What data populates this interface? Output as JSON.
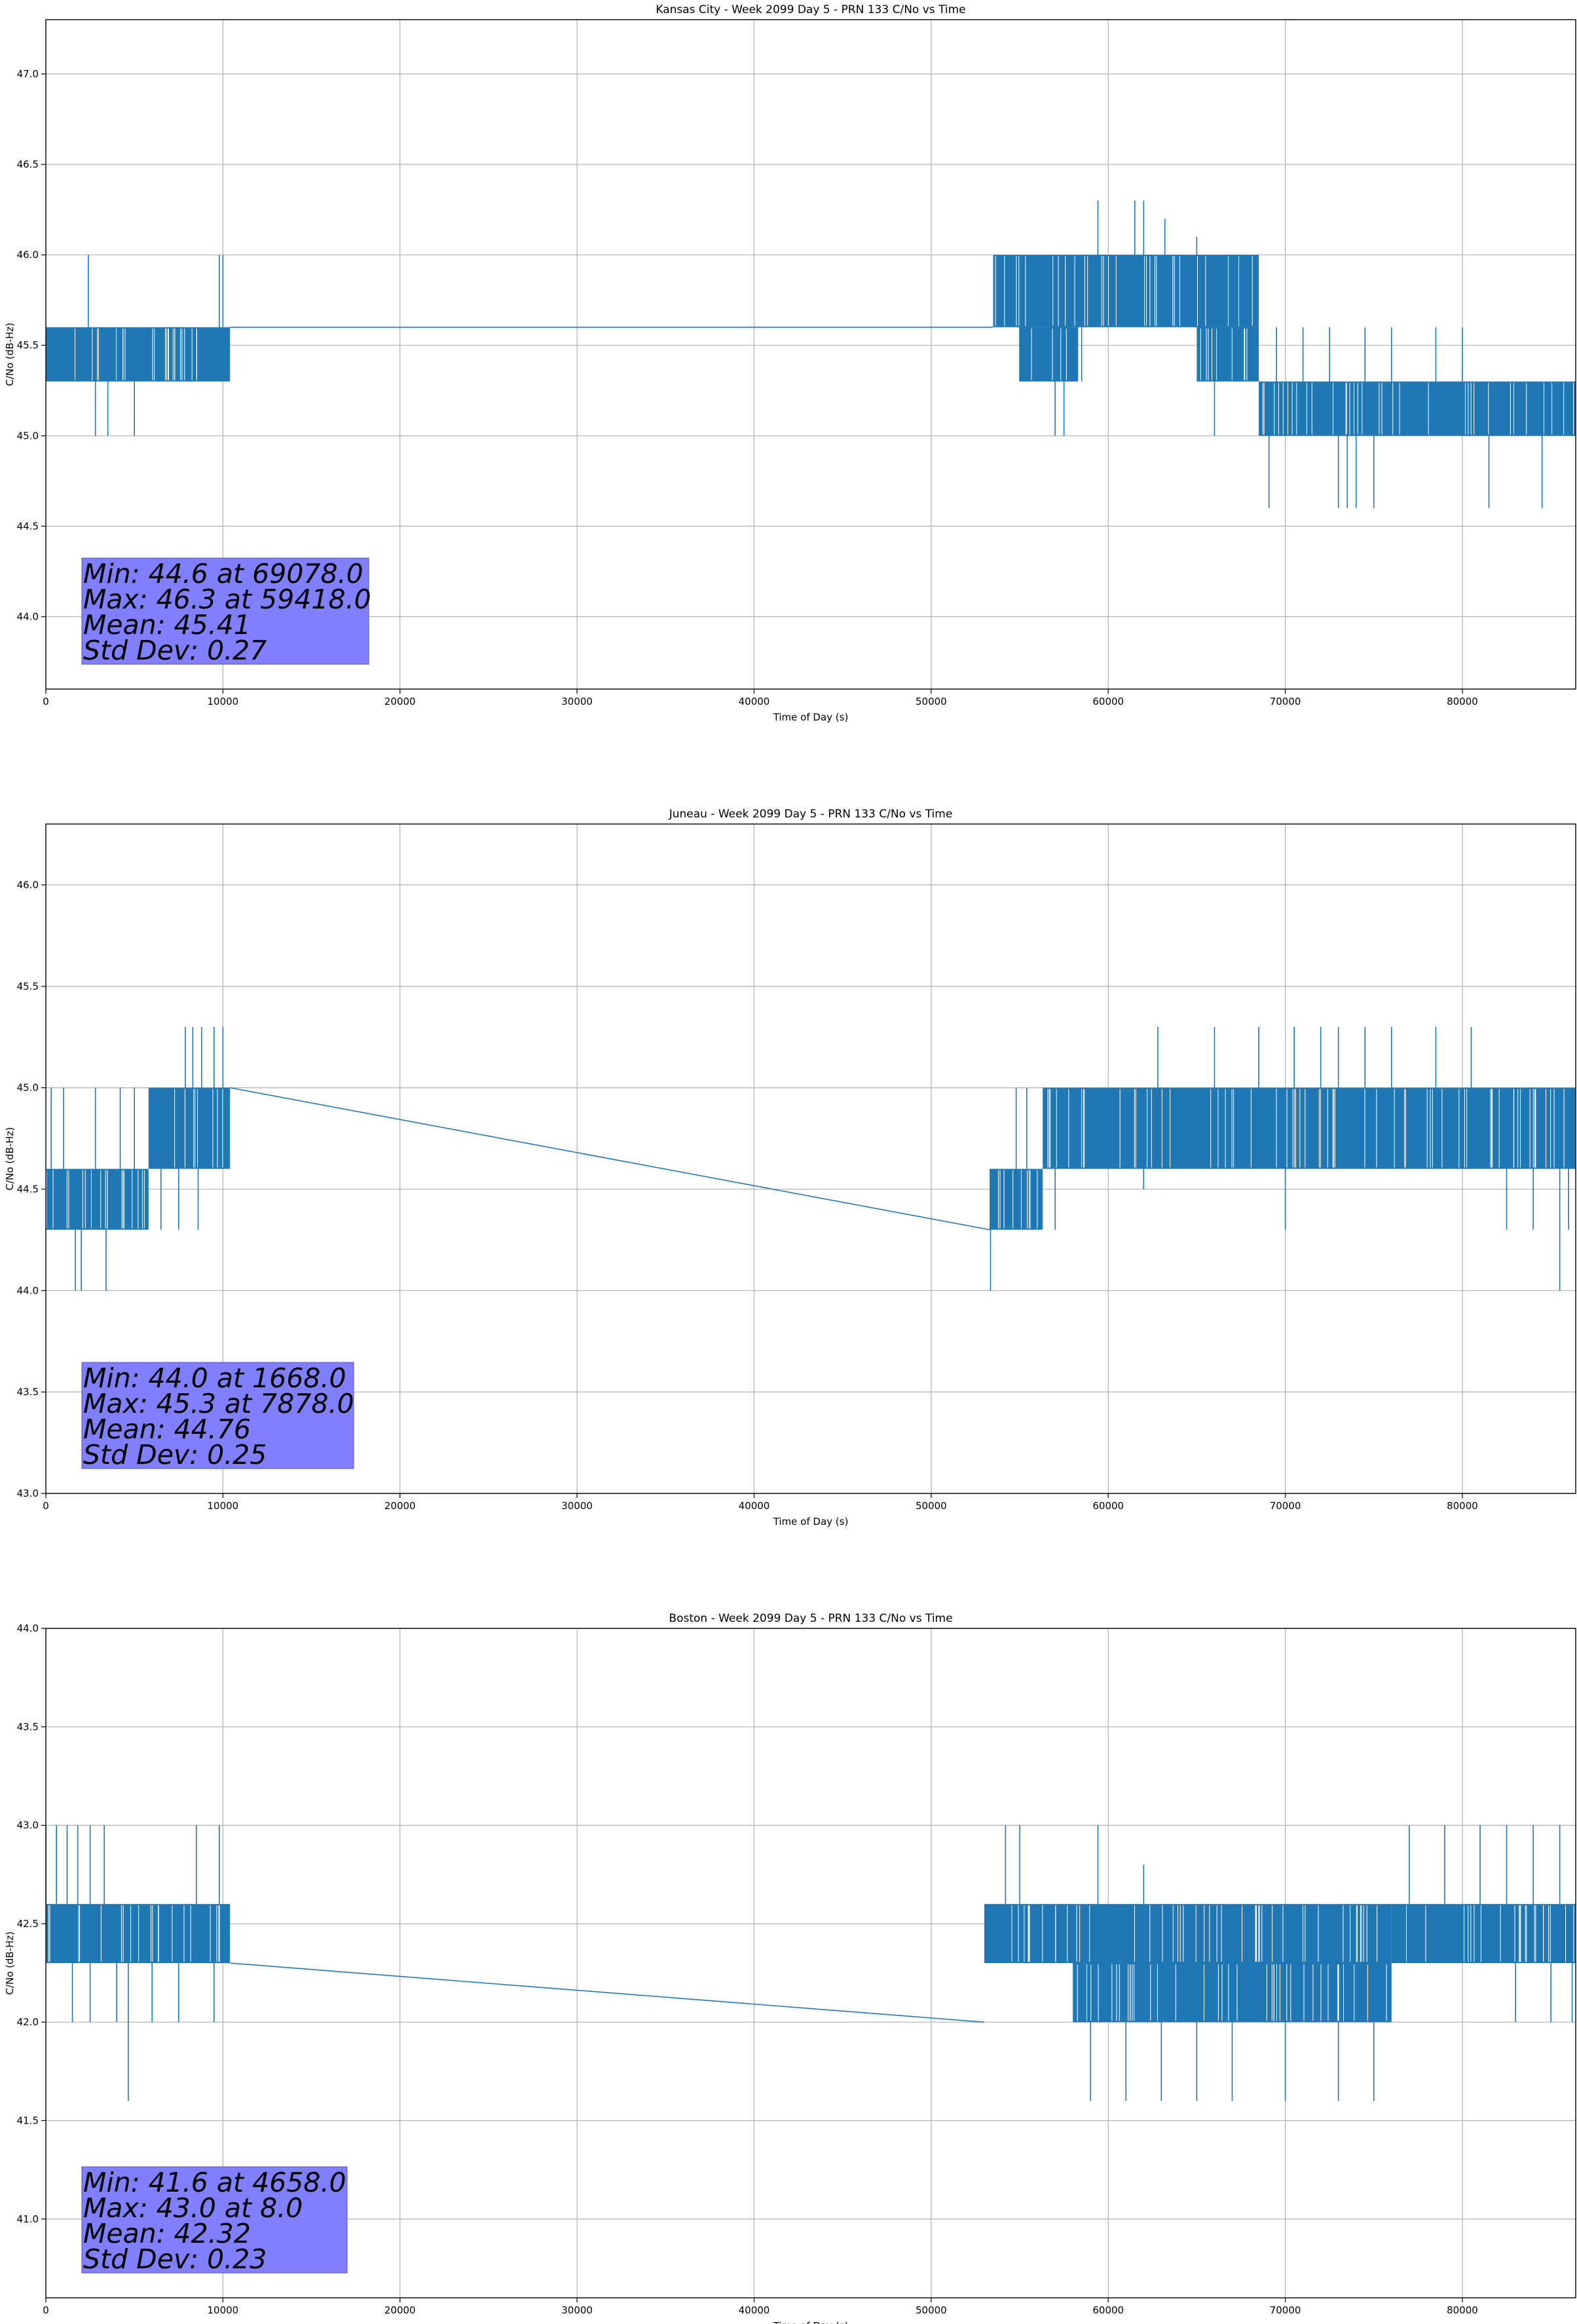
{
  "colors": {
    "series": "#1f77b4",
    "grid": "#b0b0b0",
    "statbox": "#8080ff"
  },
  "chart_data": [
    {
      "type": "line",
      "title": "Kansas City - Week 2099 Day 5 - PRN 133 C/No vs Time",
      "xlabel": "Time of Day (s)",
      "ylabel": "C/No (dB-Hz)",
      "xlim": [
        0,
        86400
      ],
      "ylim": [
        43.6,
        47.3
      ],
      "xticks": [
        0,
        10000,
        20000,
        30000,
        40000,
        50000,
        60000,
        70000,
        80000
      ],
      "yticks": [
        44.0,
        44.5,
        45.0,
        45.5,
        46.0,
        46.5,
        47.0
      ],
      "grid": true,
      "stats": [
        "Min: 44.6 at 69078.0",
        "Max: 46.3 at 59418.0",
        "Mean: 45.41",
        "Std Dev: 0.27"
      ],
      "series": [
        {
          "color": "#1f77b4",
          "levels": [
            45.3,
            45.6
          ],
          "outliers_low": [
            45.0
          ],
          "outliers_high": [
            46.0
          ],
          "segments": [
            {
              "x": [
                0,
                10400
              ],
              "levels": [
                45.3,
                45.6
              ],
              "high": [
                [
                  2400,
                  46.0
                ],
                [
                  9800,
                  46.0
                ],
                [
                  10000,
                  46.0
                ]
              ],
              "low": [
                [
                  2800,
                  45.0
                ],
                [
                  3500,
                  45.0
                ],
                [
                  5000,
                  45.0
                ]
              ]
            },
            {
              "x": [
                10400,
                53500
              ],
              "flat": 45.6
            },
            {
              "x": [
                53500,
                68500
              ],
              "levels": [
                45.6,
                46.0
              ],
              "high": [
                [
                  59418,
                  46.3
                ],
                [
                  61500,
                  46.3
                ],
                [
                  62000,
                  46.3
                ],
                [
                  63200,
                  46.2
                ],
                [
                  65000,
                  46.1
                ]
              ],
              "low": [
                [
                  55000,
                  45.3
                ],
                [
                  57000,
                  45.0
                ],
                [
                  57500,
                  45.0
                ],
                [
                  58500,
                  45.3
                ],
                [
                  66000,
                  45.0
                ],
                [
                  67500,
                  45.3
                ]
              ]
            },
            {
              "x": [
                55000,
                58300
              ],
              "levels": [
                45.3,
                45.6
              ]
            },
            {
              "x": [
                65000,
                68500
              ],
              "levels": [
                45.3,
                45.6
              ]
            },
            {
              "x": [
                68500,
                86400
              ],
              "levels": [
                45.0,
                45.3
              ],
              "high": [
                [
                  69500,
                  45.6
                ],
                [
                  71000,
                  45.6
                ],
                [
                  72500,
                  45.6
                ],
                [
                  74500,
                  45.6
                ],
                [
                  76000,
                  45.6
                ],
                [
                  78500,
                  45.6
                ],
                [
                  80000,
                  45.6
                ]
              ],
              "low": [
                [
                  69078,
                  44.6
                ],
                [
                  73000,
                  44.6
                ],
                [
                  73500,
                  44.6
                ],
                [
                  74000,
                  44.6
                ],
                [
                  75000,
                  44.6
                ],
                [
                  81500,
                  44.6
                ],
                [
                  84500,
                  44.6
                ]
              ]
            }
          ]
        }
      ]
    },
    {
      "type": "line",
      "title": "Juneau - Week 2099 Day 5 - PRN 133 C/No vs Time",
      "xlabel": "Time of Day (s)",
      "ylabel": "C/No (dB-Hz)",
      "xlim": [
        0,
        86400
      ],
      "ylim": [
        43.0,
        46.3
      ],
      "xticks": [
        0,
        10000,
        20000,
        30000,
        40000,
        50000,
        60000,
        70000,
        80000
      ],
      "yticks": [
        43.0,
        43.5,
        44.0,
        44.5,
        45.0,
        45.5,
        46.0
      ],
      "grid": true,
      "stats": [
        "Min: 44.0 at 1668.0",
        "Max: 45.3 at 7878.0",
        "Mean: 44.76",
        "Std Dev: 0.25"
      ],
      "series": [
        {
          "color": "#1f77b4",
          "segments": [
            {
              "x": [
                0,
                5800
              ],
              "levels": [
                44.3,
                44.6
              ],
              "high": [
                [
                  300,
                  45.0
                ],
                [
                  1000,
                  45.0
                ],
                [
                  2800,
                  45.0
                ],
                [
                  4200,
                  45.0
                ],
                [
                  5000,
                  45.0
                ]
              ],
              "low": [
                [
                  1668,
                  44.0
                ],
                [
                  2000,
                  44.0
                ],
                [
                  3400,
                  44.0
                ]
              ]
            },
            {
              "x": [
                5800,
                10400
              ],
              "levels": [
                44.6,
                45.0
              ],
              "high": [
                [
                  7878,
                  45.3
                ],
                [
                  8300,
                  45.3
                ],
                [
                  8800,
                  45.3
                ],
                [
                  9500,
                  45.3
                ],
                [
                  10000,
                  45.3
                ]
              ],
              "low": [
                [
                  6500,
                  44.3
                ],
                [
                  7500,
                  44.3
                ],
                [
                  8600,
                  44.3
                ]
              ]
            },
            {
              "x": [
                10400,
                53300
              ],
              "line": [
                45.0,
                44.3
              ]
            },
            {
              "x": [
                53300,
                56300
              ],
              "levels": [
                44.3,
                44.6
              ],
              "high": [
                [
                  54800,
                  45.0
                ],
                [
                  55400,
                  45.0
                ]
              ],
              "low": [
                [
                  53350,
                  44.0
                ]
              ]
            },
            {
              "x": [
                56300,
                86400
              ],
              "levels": [
                44.6,
                45.0
              ],
              "high": [
                [
                  62800,
                  45.3
                ],
                [
                  66000,
                  45.3
                ],
                [
                  68500,
                  45.3
                ],
                [
                  70500,
                  45.3
                ],
                [
                  72000,
                  45.3
                ],
                [
                  73000,
                  45.3
                ],
                [
                  74500,
                  45.3
                ],
                [
                  76000,
                  45.3
                ],
                [
                  78500,
                  45.3
                ],
                [
                  80500,
                  45.3
                ]
              ],
              "low": [
                [
                  57000,
                  44.3
                ],
                [
                  62000,
                  44.5
                ],
                [
                  70000,
                  44.3
                ],
                [
                  82500,
                  44.3
                ],
                [
                  84000,
                  44.3
                ],
                [
                  85500,
                  44.0
                ],
                [
                  86000,
                  44.3
                ]
              ]
            }
          ]
        }
      ]
    },
    {
      "type": "line",
      "title": "Boston - Week 2099 Day 5 - PRN 133 C/No vs Time",
      "xlabel": "Time of Day (s)",
      "ylabel": "C/No (dB-Hz)",
      "xlim": [
        0,
        86400
      ],
      "ylim": [
        40.6,
        44.0
      ],
      "xticks": [
        0,
        10000,
        20000,
        30000,
        40000,
        50000,
        60000,
        70000,
        80000
      ],
      "yticks": [
        41.0,
        41.5,
        42.0,
        42.5,
        43.0,
        43.5,
        44.0
      ],
      "grid": true,
      "stats": [
        "Min: 41.6 at 4658.0",
        "Max: 43.0 at 8.0",
        "Mean: 42.32",
        "Std Dev: 0.23"
      ],
      "series": [
        {
          "color": "#1f77b4",
          "segments": [
            {
              "x": [
                0,
                10400
              ],
              "levels": [
                42.3,
                42.6
              ],
              "high": [
                [
                  8,
                  43.0
                ],
                [
                  600,
                  43.0
                ],
                [
                  1200,
                  43.0
                ],
                [
                  1800,
                  43.0
                ],
                [
                  2500,
                  43.0
                ],
                [
                  3300,
                  43.0
                ],
                [
                  8500,
                  43.0
                ],
                [
                  9800,
                  43.0
                ]
              ],
              "low": [
                [
                  1500,
                  42.0
                ],
                [
                  2500,
                  42.0
                ],
                [
                  4000,
                  42.0
                ],
                [
                  4658,
                  41.6
                ],
                [
                  6000,
                  42.0
                ],
                [
                  7500,
                  42.0
                ],
                [
                  9500,
                  42.0
                ]
              ]
            },
            {
              "x": [
                10400,
                53000
              ],
              "line": [
                42.3,
                42.0
              ]
            },
            {
              "x": [
                53000,
                76000
              ],
              "levels": [
                42.3,
                42.6
              ],
              "high": [
                [
                  54200,
                  43.0
                ],
                [
                  55000,
                  43.0
                ],
                [
                  59418,
                  43.0
                ],
                [
                  62000,
                  42.8
                ]
              ],
              "low": [
                [
                  59000,
                  41.6
                ],
                [
                  61000,
                  41.6
                ],
                [
                  63000,
                  41.6
                ],
                [
                  65000,
                  41.6
                ],
                [
                  67000,
                  41.6
                ],
                [
                  70000,
                  41.6
                ],
                [
                  73000,
                  41.6
                ],
                [
                  75000,
                  41.6
                ]
              ]
            },
            {
              "x": [
                58000,
                76000
              ],
              "levels": [
                42.0,
                42.3
              ]
            },
            {
              "x": [
                76000,
                86400
              ],
              "levels": [
                42.3,
                42.6
              ],
              "high": [
                [
                  77000,
                  43.0
                ],
                [
                  79000,
                  43.0
                ],
                [
                  81000,
                  43.0
                ],
                [
                  82500,
                  43.0
                ],
                [
                  84000,
                  43.0
                ],
                [
                  85500,
                  43.0
                ]
              ],
              "low": [
                [
                  83000,
                  42.0
                ],
                [
                  85000,
                  42.0
                ],
                [
                  86200,
                  42.0
                ]
              ]
            }
          ]
        }
      ]
    }
  ]
}
